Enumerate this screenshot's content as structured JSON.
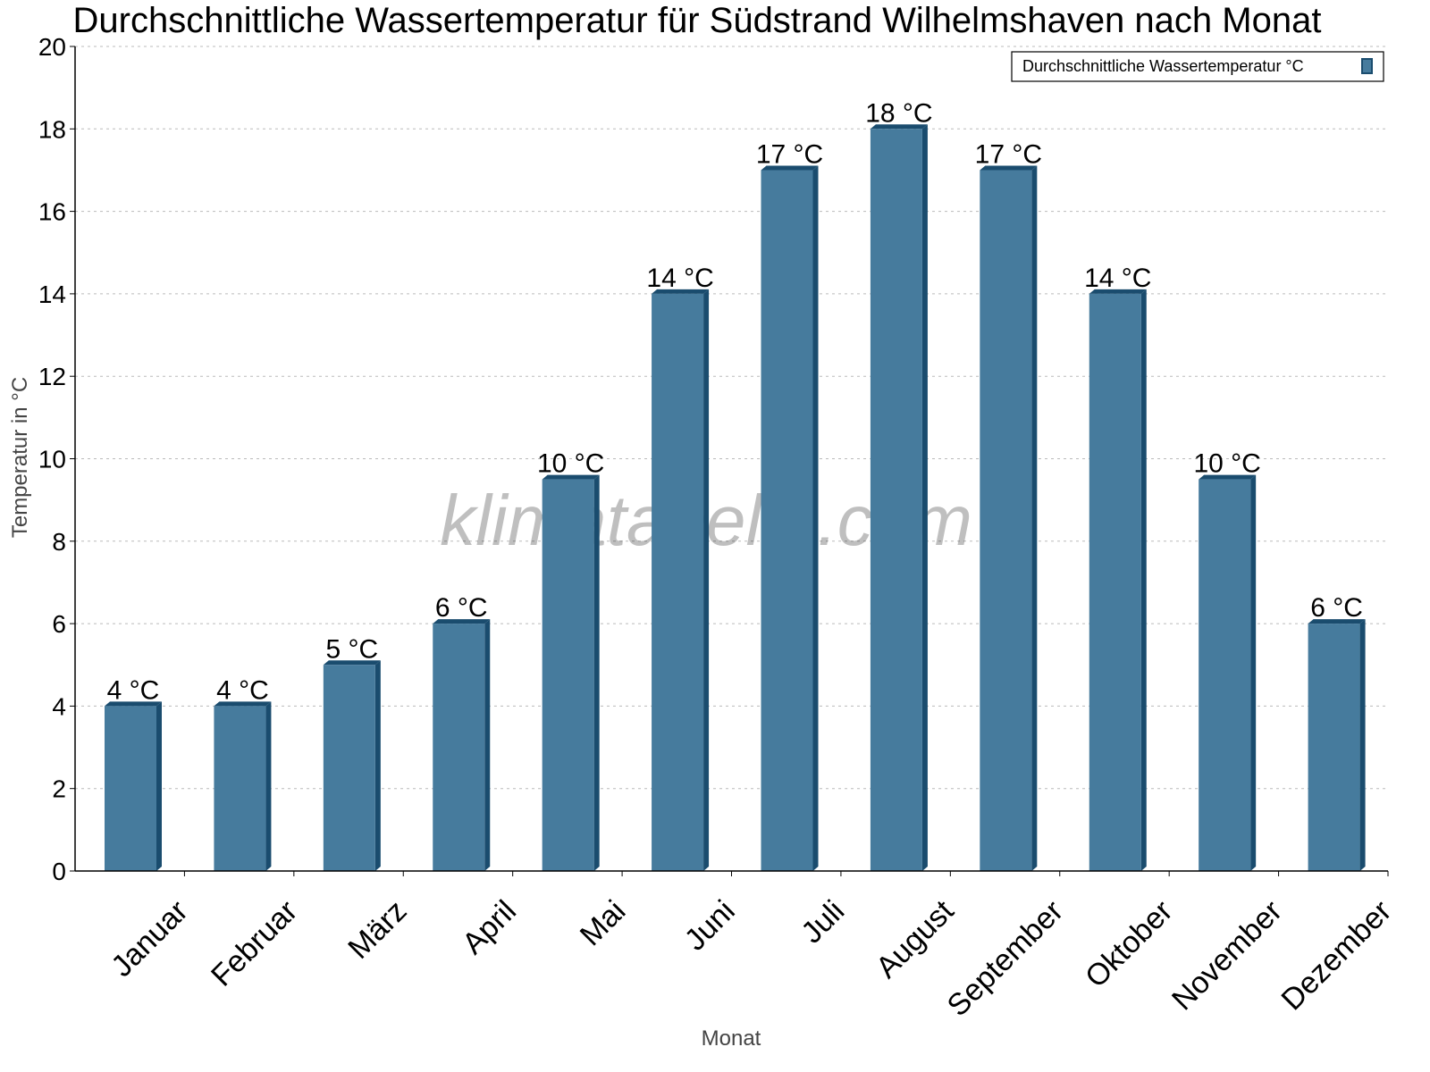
{
  "chart_data": {
    "type": "bar",
    "title": "Durchschnittliche Wassertemperatur für Südstrand Wilhelmshaven nach Monat",
    "xlabel": "Monat",
    "ylabel": "Temperatur in °C",
    "categories": [
      "Januar",
      "Februar",
      "März",
      "April",
      "Mai",
      "Juni",
      "Juli",
      "August",
      "September",
      "Oktober",
      "November",
      "Dezember"
    ],
    "series": [
      {
        "name": "Durchschnittliche Wassertemperatur °C",
        "values": [
          4,
          4,
          5,
          6,
          9.5,
          14,
          17,
          18,
          17,
          14,
          9.5,
          6
        ],
        "labels": [
          "4 °C",
          "4 °C",
          "5 °C",
          "6 °C",
          "10 °C",
          "14 °C",
          "17 °C",
          "18 °C",
          "17 °C",
          "14 °C",
          "10 °C",
          "6 °C"
        ]
      }
    ],
    "ylim": [
      0,
      20
    ],
    "yticks": [
      0,
      2,
      4,
      6,
      8,
      10,
      12,
      14,
      16,
      18,
      20
    ],
    "grid": true,
    "legend": "top-right",
    "colors": {
      "bar": "#467b9d",
      "bar_shade": "#1a4c6e"
    },
    "watermark": "klimatabelle.com"
  }
}
